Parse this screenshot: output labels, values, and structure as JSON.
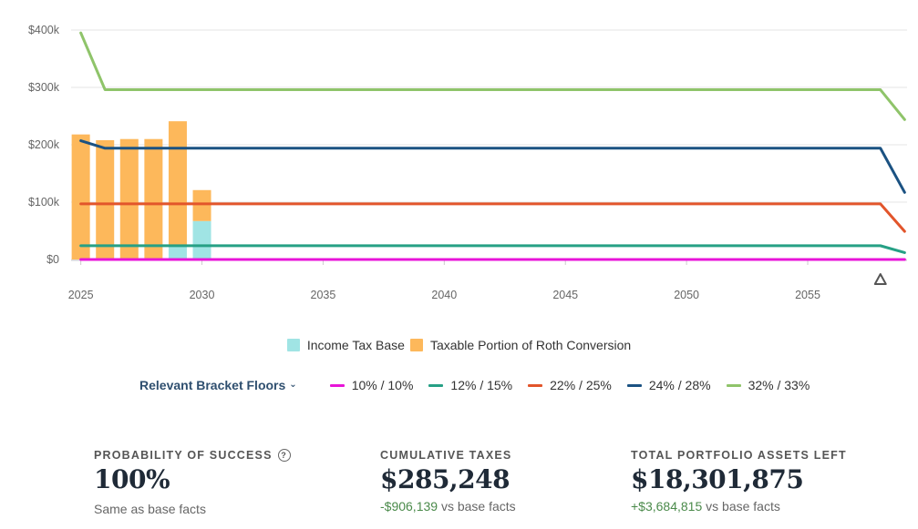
{
  "chart_data": {
    "type": "bar+line",
    "x_ticks": [
      2025,
      2030,
      2035,
      2040,
      2045,
      2050,
      2055
    ],
    "xlim": [
      2024.6,
      2059.1
    ],
    "y_ticks": [
      "$0",
      "$100k",
      "$200k",
      "$300k",
      "$400k"
    ],
    "ylim": [
      0,
      400000
    ],
    "bars": {
      "years": [
        2025,
        2026,
        2027,
        2028,
        2029,
        2030
      ],
      "series": [
        {
          "name": "Income Tax Base",
          "color": "#a0e4e4",
          "values": [
            0,
            0,
            0,
            0,
            25000,
            67000
          ]
        },
        {
          "name": "Taxable Portion of Roth Conversion",
          "color": "#fdb85b",
          "values": [
            218000,
            208000,
            210000,
            210000,
            216000,
            54000
          ]
        }
      ]
    },
    "lines": {
      "years": [
        2025,
        2026,
        2058,
        2059
      ],
      "series": [
        {
          "name": "10% / 10%",
          "color": "#e815d8",
          "values": [
            0,
            0,
            0,
            0
          ]
        },
        {
          "name": "12% / 15%",
          "color": "#26a085",
          "values": [
            24000,
            24000,
            24000,
            12000
          ]
        },
        {
          "name": "22% / 25%",
          "color": "#e2552b",
          "values": [
            97000,
            97000,
            97000,
            49000
          ]
        },
        {
          "name": "24% / 28%",
          "color": "#1b5282",
          "values": [
            207000,
            194000,
            194000,
            117000
          ]
        },
        {
          "name": "32% / 33%",
          "color": "#8fc46a",
          "values": [
            395000,
            296000,
            296000,
            244000
          ]
        }
      ]
    },
    "marker_year": 2058
  },
  "legend": {
    "income_tax_base": "Income Tax Base",
    "roth_conversion": "Taxable Portion of Roth Conversion"
  },
  "brackets": {
    "toggle_label": "Relevant Bracket Floors",
    "items": [
      {
        "label": "10% / 10%",
        "color": "#e815d8"
      },
      {
        "label": "12% / 15%",
        "color": "#26a085"
      },
      {
        "label": "22% / 25%",
        "color": "#e2552b"
      },
      {
        "label": "24% / 28%",
        "color": "#1b5282"
      },
      {
        "label": "32% / 33%",
        "color": "#8fc46a"
      }
    ]
  },
  "stats": {
    "success": {
      "label": "PROBABILITY OF SUCCESS",
      "value": "100%",
      "sub": "Same as base facts"
    },
    "taxes": {
      "label": "CUMULATIVE TAXES",
      "value": "$285,248",
      "delta": "-$906,139",
      "sub": " vs base facts"
    },
    "assets": {
      "label": "TOTAL PORTFOLIO ASSETS LEFT",
      "value": "$18,301,875",
      "delta": "+$3,684,815",
      "sub": " vs base facts"
    }
  }
}
